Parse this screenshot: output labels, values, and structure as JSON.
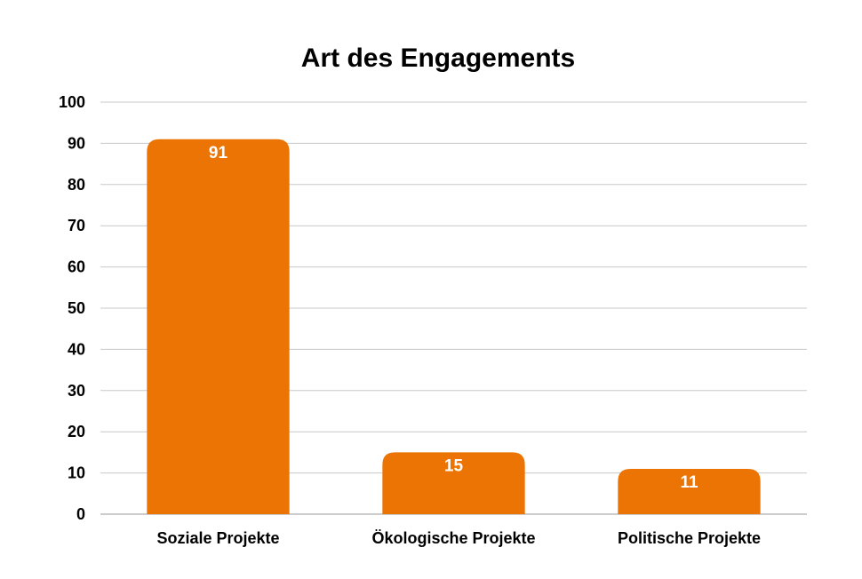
{
  "chart_data": {
    "type": "bar",
    "title": "Art des Engagements",
    "categories": [
      "Soziale Projekte",
      "Ökologische Projekte",
      "Politische Projekte"
    ],
    "values": [
      91,
      15,
      11
    ],
    "data_labels": [
      "91",
      "15",
      "11"
    ],
    "ylim": [
      0,
      100
    ],
    "y_ticks": [
      0,
      10,
      20,
      30,
      40,
      50,
      60,
      70,
      80,
      90,
      100
    ],
    "xlabel": "",
    "ylabel": "",
    "grid": true,
    "legend": "none",
    "bar_color": "#ec7404"
  }
}
